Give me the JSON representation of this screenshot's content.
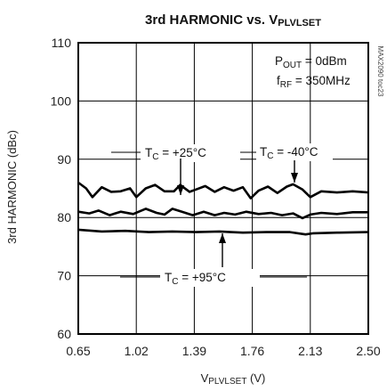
{
  "chart_data": {
    "type": "line",
    "title": "3rd HARMONIC vs. V",
    "title_sub": "PLVLSET",
    "xlabel": "V",
    "xlabel_sub": "PLVLSET",
    "xlabel_unit": " (V)",
    "ylabel": "3rd HARMONIC (dBc)",
    "xlim": [
      0.65,
      2.5
    ],
    "ylim": [
      60,
      110
    ],
    "xticks": [
      0.65,
      1.02,
      1.39,
      1.76,
      2.13,
      2.5
    ],
    "xtick_labels": [
      "0.65",
      "1.02",
      "1.39",
      "1.76",
      "2.13",
      "2.50"
    ],
    "yticks": [
      60,
      70,
      80,
      90,
      100,
      110
    ],
    "ytick_labels": [
      "60",
      "70",
      "80",
      "90",
      "100",
      "110"
    ],
    "grid": true,
    "code": "MAX2090 toc23",
    "conditions": [
      {
        "main": "P",
        "sub": "OUT",
        "rest": " = 0dBm"
      },
      {
        "main": "f",
        "sub": "RF",
        "rest": " = 350MHz"
      }
    ],
    "annotations": [
      {
        "main": "T",
        "sub": "C",
        "rest": " = +25°C",
        "series": 0
      },
      {
        "main": "T",
        "sub": "C",
        "rest": " = -40°C",
        "series": 1
      },
      {
        "main": "T",
        "sub": "C",
        "rest": " = +95°C",
        "series": 2
      }
    ],
    "series": [
      {
        "x": [
          0.65,
          0.72,
          0.78,
          0.85,
          0.92,
          1.0,
          1.08,
          1.15,
          1.2,
          1.25,
          1.32,
          1.38,
          1.45,
          1.52,
          1.58,
          1.65,
          1.72,
          1.8,
          1.88,
          1.95,
          2.02,
          2.08,
          2.13,
          2.2,
          2.3,
          2.4,
          2.5
        ],
        "y": [
          81.0,
          80.7,
          81.2,
          80.4,
          81.0,
          80.6,
          81.5,
          80.8,
          80.5,
          81.5,
          80.9,
          80.4,
          81.0,
          80.4,
          80.8,
          80.5,
          81.0,
          80.6,
          80.8,
          80.4,
          80.7,
          79.9,
          80.5,
          80.8,
          80.6,
          80.9,
          80.9
        ]
      },
      {
        "x": [
          0.65,
          0.7,
          0.74,
          0.8,
          0.86,
          0.92,
          0.98,
          1.02,
          1.08,
          1.14,
          1.2,
          1.26,
          1.3,
          1.36,
          1.4,
          1.46,
          1.52,
          1.58,
          1.64,
          1.7,
          1.75,
          1.8,
          1.86,
          1.92,
          1.98,
          2.02,
          2.08,
          2.13,
          2.2,
          2.3,
          2.4,
          2.5
        ],
        "y": [
          86.0,
          85.0,
          83.5,
          85.2,
          84.4,
          84.5,
          85.0,
          83.5,
          85.0,
          85.6,
          84.5,
          84.5,
          85.6,
          84.4,
          84.8,
          85.4,
          84.4,
          85.2,
          84.6,
          85.2,
          83.3,
          84.6,
          85.3,
          84.2,
          85.3,
          85.7,
          84.8,
          83.5,
          84.5,
          84.3,
          84.5,
          84.3
        ]
      },
      {
        "x": [
          0.65,
          0.8,
          0.95,
          1.1,
          1.25,
          1.4,
          1.55,
          1.7,
          1.85,
          2.0,
          2.1,
          2.15,
          2.3,
          2.5
        ],
        "y": [
          77.9,
          77.6,
          77.7,
          77.5,
          77.6,
          77.5,
          77.6,
          77.4,
          77.5,
          77.5,
          77.1,
          77.3,
          77.4,
          77.5
        ]
      }
    ]
  }
}
